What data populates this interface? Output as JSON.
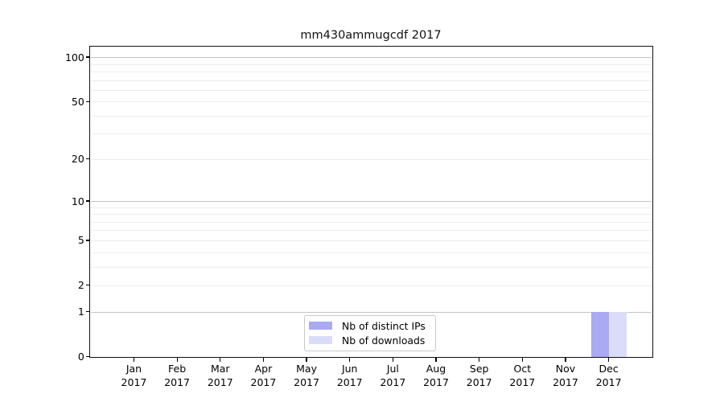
{
  "figure": {
    "background": "#ffffff"
  },
  "chart_data": {
    "type": "bar",
    "title": "mm430ammugcdf 2017",
    "categories": [
      {
        "month": "Jan",
        "year": "2017"
      },
      {
        "month": "Feb",
        "year": "2017"
      },
      {
        "month": "Mar",
        "year": "2017"
      },
      {
        "month": "Apr",
        "year": "2017"
      },
      {
        "month": "May",
        "year": "2017"
      },
      {
        "month": "Jun",
        "year": "2017"
      },
      {
        "month": "Jul",
        "year": "2017"
      },
      {
        "month": "Aug",
        "year": "2017"
      },
      {
        "month": "Sep",
        "year": "2017"
      },
      {
        "month": "Oct",
        "year": "2017"
      },
      {
        "month": "Nov",
        "year": "2017"
      },
      {
        "month": "Dec",
        "year": "2017"
      }
    ],
    "series": [
      {
        "name": "Nb of distinct IPs",
        "color": "#a9aaf3",
        "values": [
          0,
          0,
          0,
          0,
          0,
          0,
          0,
          0,
          0,
          0,
          0,
          1
        ]
      },
      {
        "name": "Nb of downloads",
        "color": "#dbddf8",
        "values": [
          0,
          0,
          0,
          0,
          0,
          0,
          0,
          0,
          0,
          0,
          0,
          1
        ]
      }
    ],
    "xlabel": "",
    "ylabel": "",
    "y_scale": "log10(1+v)",
    "ylim": [
      0,
      118
    ],
    "y_tick_values": [
      0,
      1,
      2,
      5,
      10,
      20,
      50,
      100
    ],
    "y_major_gridlines": [
      1,
      10,
      100
    ],
    "y_minor_gridlines": [
      2,
      3,
      4,
      5,
      6,
      7,
      8,
      9,
      20,
      30,
      40,
      50,
      60,
      70,
      80,
      90
    ],
    "grid": true,
    "legend_position": "lower center (inside plot)"
  },
  "colors": {
    "major_grid": "#c4c4c4",
    "minor_grid": "#ededed",
    "spine": "#111111",
    "text": "#000000",
    "legend_border": "#c9c9c9",
    "background": "#ffffff"
  }
}
